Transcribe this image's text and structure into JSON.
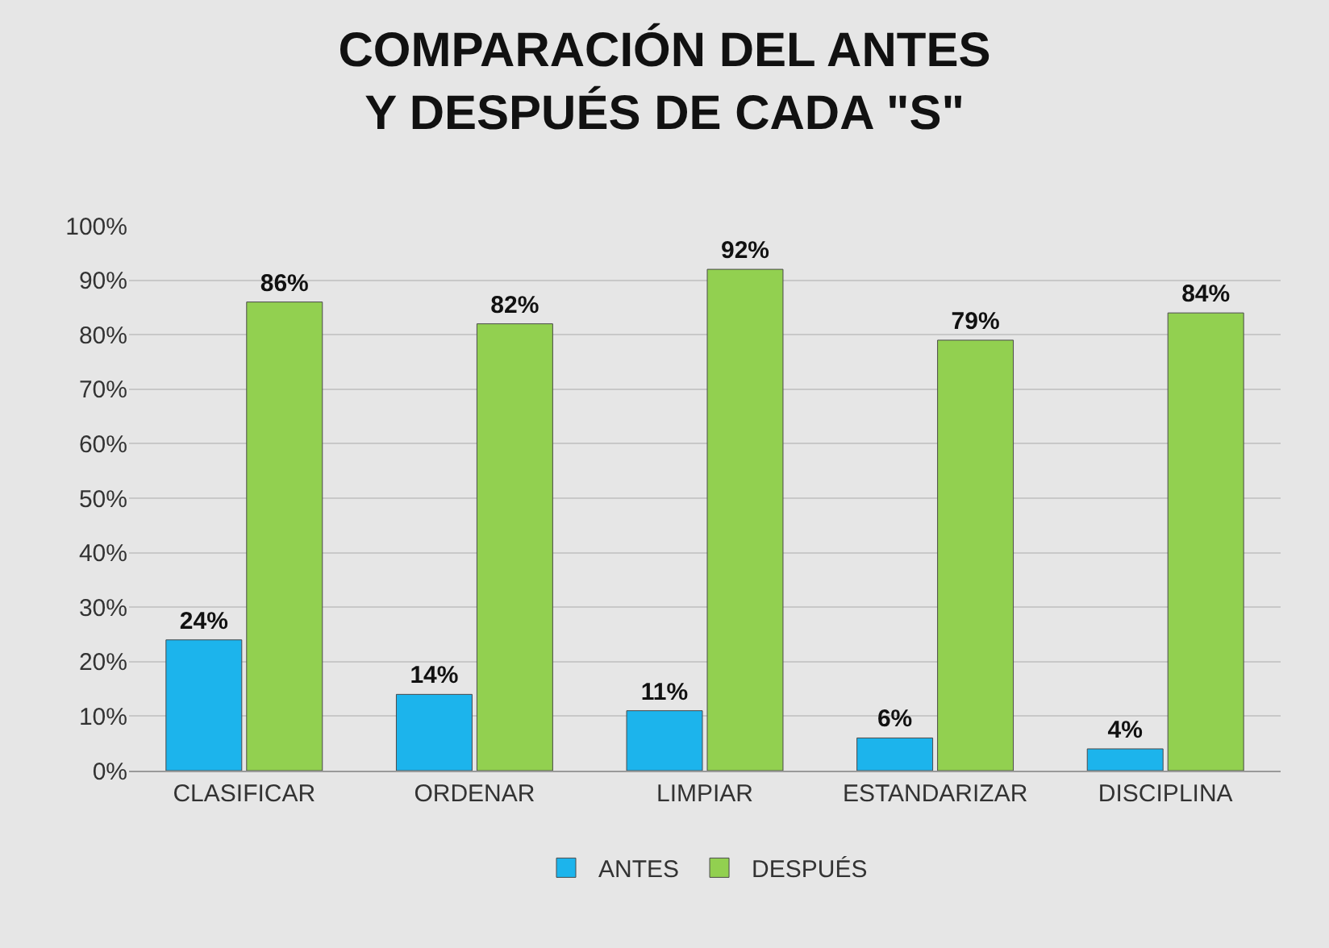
{
  "chart_data": {
    "type": "bar",
    "title": "COMPARACIÓN DEL ANTES Y DESPUÉS DE CADA \"S\"",
    "categories": [
      "CLASIFICAR",
      "ORDENAR",
      "LIMPIAR",
      "ESTANDARIZAR",
      "DISCIPLINA"
    ],
    "series": [
      {
        "name": "ANTES",
        "color": "#1cb4ec",
        "values": [
          24,
          14,
          11,
          6,
          4
        ],
        "value_labels": [
          "24%",
          "14%",
          "11%",
          "6%",
          "4%"
        ]
      },
      {
        "name": "DESPUÉS",
        "color": "#92d050",
        "values": [
          86,
          82,
          92,
          79,
          84
        ],
        "value_labels": [
          "86%",
          "82%",
          "92%",
          "79%",
          "84%"
        ]
      }
    ],
    "ylim": [
      0,
      100
    ],
    "yticks": [
      {
        "value": 0,
        "label": "0%"
      },
      {
        "value": 10,
        "label": "10%"
      },
      {
        "value": 20,
        "label": "20%"
      },
      {
        "value": 30,
        "label": "30%"
      },
      {
        "value": 40,
        "label": "40%"
      },
      {
        "value": 50,
        "label": "50%"
      },
      {
        "value": 60,
        "label": "60%"
      },
      {
        "value": 70,
        "label": "70%"
      },
      {
        "value": 80,
        "label": "80%"
      },
      {
        "value": 90,
        "label": "90%"
      },
      {
        "value": 100,
        "label": "100%"
      }
    ],
    "grid": "y",
    "legend": "bottom"
  }
}
